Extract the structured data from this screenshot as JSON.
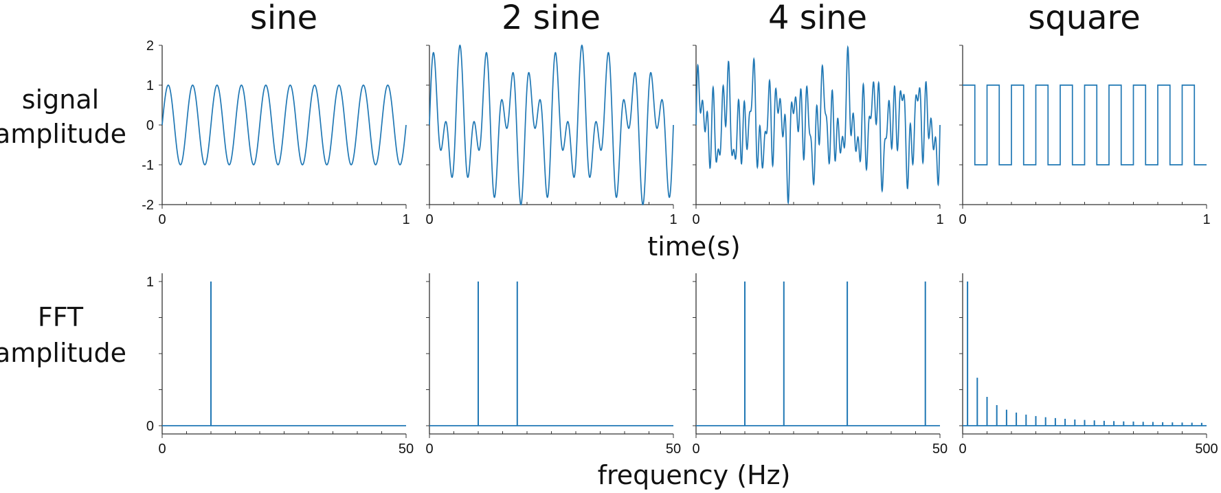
{
  "figure": {
    "col_titles": [
      "sine",
      "2 sine",
      "4 sine",
      "square"
    ],
    "row_labels": [
      [
        "signal",
        "amplitude"
      ],
      [
        "FFT",
        "amplitude"
      ]
    ],
    "xlabel_top": "time(s)",
    "xlabel_bottom": "frequency (Hz)",
    "line_color": "#1f77b4"
  },
  "chart_data": [
    {
      "type": "line",
      "panel": "signal",
      "title": "sine",
      "xlim": [
        0,
        1
      ],
      "ylim": [
        -2,
        2
      ],
      "x_ticks": [
        "0",
        "1"
      ],
      "y_ticks": [
        "2",
        "1",
        "0",
        "-1",
        "-2"
      ],
      "series": [
        {
          "components": [
            {
              "freq": 10,
              "amp": 1,
              "phase": 0
            }
          ]
        }
      ]
    },
    {
      "type": "line",
      "panel": "signal",
      "title": "2 sine",
      "xlim": [
        0,
        1
      ],
      "ylim": [
        -2,
        2
      ],
      "x_ticks": [
        "0",
        "1"
      ],
      "y_ticks": [],
      "series": [
        {
          "components": [
            {
              "freq": 10,
              "amp": 1,
              "phase": 0
            },
            {
              "freq": 18,
              "amp": 1,
              "phase": 0
            }
          ]
        }
      ]
    },
    {
      "type": "line",
      "panel": "signal",
      "title": "4 sine",
      "xlim": [
        0,
        1
      ],
      "ylim": [
        -2,
        2
      ],
      "x_ticks": [
        "0",
        "1"
      ],
      "y_ticks": [],
      "series": [
        {
          "components": [
            {
              "freq": 10,
              "amp": 0.5,
              "phase": 0
            },
            {
              "freq": 18,
              "amp": 0.5,
              "phase": 0
            },
            {
              "freq": 31,
              "amp": 0.5,
              "phase": 0
            },
            {
              "freq": 47,
              "amp": 0.5,
              "phase": 0
            }
          ]
        }
      ]
    },
    {
      "type": "line",
      "panel": "signal",
      "title": "square",
      "xlim": [
        0,
        1
      ],
      "ylim": [
        -2,
        2
      ],
      "x_ticks": [
        "0",
        "1"
      ],
      "y_ticks": [],
      "series": [
        {
          "wave": "square",
          "freq": 10,
          "amp": 1
        }
      ]
    },
    {
      "type": "bar",
      "panel": "fft",
      "xlim": [
        0,
        50
      ],
      "ylim": [
        0,
        1
      ],
      "x_ticks": [
        "0",
        "50"
      ],
      "y_ticks": [
        "1",
        "0"
      ],
      "series": [
        {
          "x": [
            10
          ],
          "values": [
            1
          ]
        }
      ]
    },
    {
      "type": "bar",
      "panel": "fft",
      "xlim": [
        0,
        50
      ],
      "ylim": [
        0,
        1
      ],
      "x_ticks": [
        "0",
        "50"
      ],
      "y_ticks": [],
      "series": [
        {
          "x": [
            10,
            18
          ],
          "values": [
            1,
            1
          ]
        }
      ]
    },
    {
      "type": "bar",
      "panel": "fft",
      "xlim": [
        0,
        50
      ],
      "ylim": [
        0,
        1
      ],
      "x_ticks": [
        "0",
        "50"
      ],
      "y_ticks": [],
      "series": [
        {
          "x": [
            10,
            18,
            31,
            47
          ],
          "values": [
            1,
            1,
            1,
            1
          ]
        }
      ]
    },
    {
      "type": "bar",
      "panel": "fft",
      "xlim": [
        0,
        500
      ],
      "ylim": [
        0,
        1
      ],
      "x_ticks": [
        "0",
        "500"
      ],
      "y_ticks": [],
      "series": [
        {
          "x": [
            10,
            30,
            50,
            70,
            90,
            110,
            130,
            150,
            170,
            190,
            210,
            230,
            250,
            270,
            290,
            310,
            330,
            350,
            370,
            390,
            410,
            430,
            450,
            470,
            490
          ],
          "values": [
            1,
            0.333,
            0.2,
            0.143,
            0.111,
            0.091,
            0.077,
            0.067,
            0.059,
            0.053,
            0.048,
            0.043,
            0.04,
            0.037,
            0.034,
            0.032,
            0.03,
            0.029,
            0.027,
            0.026,
            0.024,
            0.023,
            0.022,
            0.021,
            0.02
          ]
        }
      ]
    }
  ]
}
